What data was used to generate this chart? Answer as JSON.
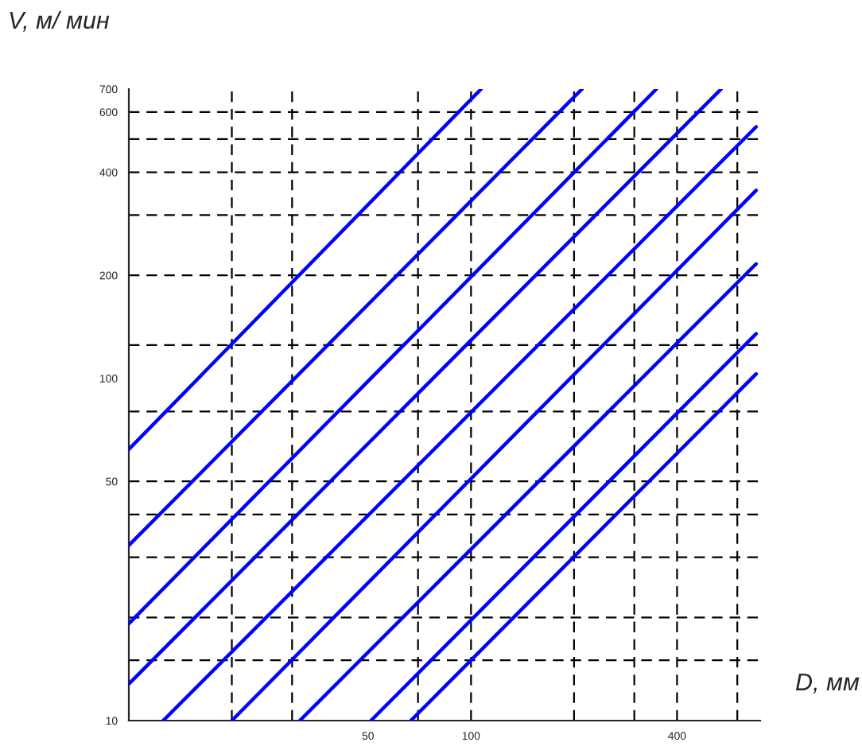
{
  "chart_data": {
    "type": "line",
    "xlabel": "D, мм",
    "ylabel": "V, м/ мин",
    "log": "xy",
    "xlim": [
      10,
      700
    ],
    "ylim": [
      10,
      700
    ],
    "xticks": [
      50,
      100,
      400
    ],
    "yticks": [
      10,
      50,
      100,
      200,
      400,
      600,
      700
    ],
    "series": [
      {
        "x": [
          10,
          107
        ],
        "values": [
          62,
          700
        ],
        "color": "#0000ff"
      },
      {
        "x": [
          10,
          211
        ],
        "values": [
          32.5,
          700
        ],
        "color": "#0000ff"
      },
      {
        "x": [
          10,
          348
        ],
        "values": [
          19.2,
          700
        ],
        "color": "#0000ff"
      },
      {
        "x": [
          10,
          538
        ],
        "values": [
          12.8,
          700
        ],
        "color": "#0000ff"
      },
      {
        "x": [
          12.6,
          681
        ],
        "values": [
          10,
          543
        ],
        "color": "#0000ff"
      },
      {
        "x": [
          20,
          681
        ],
        "values": [
          10,
          354
        ],
        "color": "#0000ff"
      },
      {
        "x": [
          31.6,
          681
        ],
        "values": [
          10,
          216
        ],
        "color": "#0000ff"
      },
      {
        "x": [
          51,
          681
        ],
        "values": [
          10,
          135
        ],
        "color": "#0000ff"
      },
      {
        "x": [
          66.7,
          681
        ],
        "values": [
          10,
          103
        ],
        "color": "#0000ff"
      }
    ],
    "ref_lines": [
      {
        "axis": "y",
        "value": 15,
        "color": "#000000",
        "line_style": "dashed"
      },
      {
        "axis": "y",
        "value": 20,
        "color": "#000000",
        "line_style": "dashed"
      },
      {
        "axis": "y",
        "value": 30,
        "color": "#000000",
        "line_style": "dashed"
      },
      {
        "axis": "y",
        "value": 40,
        "color": "#000000",
        "line_style": "dashed"
      },
      {
        "axis": "y",
        "value": 50,
        "color": "#000000",
        "line_style": "dashed"
      },
      {
        "axis": "y",
        "value": 80,
        "color": "#000000",
        "line_style": "dashed"
      },
      {
        "axis": "y",
        "value": 125,
        "color": "#000000",
        "line_style": "dashed"
      },
      {
        "axis": "y",
        "value": 200,
        "color": "#000000",
        "line_style": "dashed"
      },
      {
        "axis": "y",
        "value": 300,
        "color": "#000000",
        "line_style": "dashed"
      },
      {
        "axis": "y",
        "value": 400,
        "color": "#000000",
        "line_style": "dashed"
      },
      {
        "axis": "y",
        "value": 500,
        "color": "#000000",
        "line_style": "dashed"
      },
      {
        "axis": "y",
        "value": 600,
        "color": "#000000",
        "line_style": "dashed"
      },
      {
        "axis": "x",
        "value": 20,
        "color": "#000000",
        "line_style": "dashed"
      },
      {
        "axis": "x",
        "value": 30,
        "color": "#000000",
        "line_style": "dashed"
      },
      {
        "axis": "x",
        "value": 70,
        "color": "#000000",
        "line_style": "dashed"
      },
      {
        "axis": "x",
        "value": 100,
        "color": "#000000",
        "line_style": "dashed"
      },
      {
        "axis": "x",
        "value": 200,
        "color": "#000000",
        "line_style": "dashed"
      },
      {
        "axis": "x",
        "value": 300,
        "color": "#000000",
        "line_style": "dashed"
      },
      {
        "axis": "x",
        "value": 400,
        "color": "#000000",
        "line_style": "dashed"
      },
      {
        "axis": "x",
        "value": 600,
        "color": "#000000",
        "line_style": "dashed"
      }
    ]
  }
}
